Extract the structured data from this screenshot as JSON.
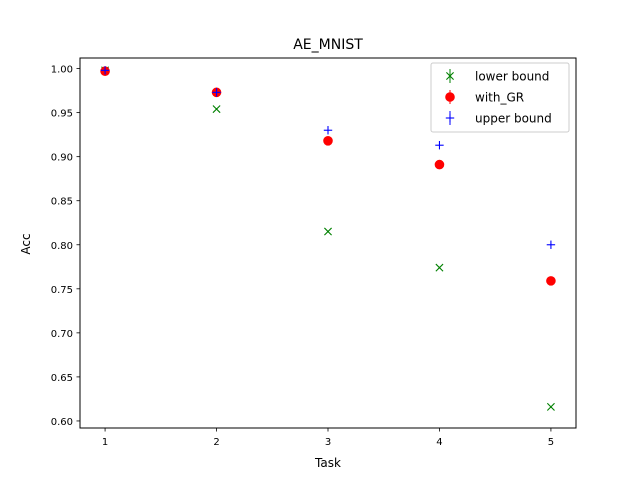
{
  "chart_data": {
    "type": "scatter",
    "title": "AE_MNIST",
    "xlabel": "Task",
    "ylabel": "Acc",
    "xlim": [
      0.775,
      5.225
    ],
    "ylim": [
      0.592,
      1.012
    ],
    "xticks": [
      1,
      2,
      3,
      4,
      5
    ],
    "xtick_labels": [
      "1",
      "2",
      "3",
      "4",
      "5"
    ],
    "yticks": [
      0.6,
      0.65,
      0.7,
      0.75,
      0.8,
      0.85,
      0.9,
      0.95,
      1.0
    ],
    "ytick_labels": [
      "0.60",
      "0.65",
      "0.70",
      "0.75",
      "0.80",
      "0.85",
      "0.90",
      "0.95",
      "1.00"
    ],
    "grid": false,
    "legend_position": "top-right",
    "series": [
      {
        "name": "lower bound",
        "marker": "x",
        "color": "#008000",
        "x": [
          1,
          2,
          3,
          4,
          5
        ],
        "y": [
          0.998,
          0.954,
          0.815,
          0.774,
          0.616
        ],
        "error": [
          0.0015,
          0.001,
          0.001,
          0.001,
          0.001
        ]
      },
      {
        "name": "with_GR",
        "marker": "o",
        "color": "#ff0000",
        "x": [
          1,
          2,
          3,
          4,
          5
        ],
        "y": [
          0.997,
          0.973,
          0.918,
          0.891,
          0.759
        ],
        "error": [
          0.001,
          0.001,
          0.001,
          0.001,
          0.001
        ]
      },
      {
        "name": "upper bound",
        "marker": "+",
        "color": "#0000ff",
        "x": [
          1,
          2,
          3,
          4,
          5
        ],
        "y": [
          0.998,
          0.973,
          0.93,
          0.913,
          0.8
        ],
        "error": [
          0.001,
          0.001,
          0.001,
          0.001,
          0.001
        ]
      }
    ]
  }
}
